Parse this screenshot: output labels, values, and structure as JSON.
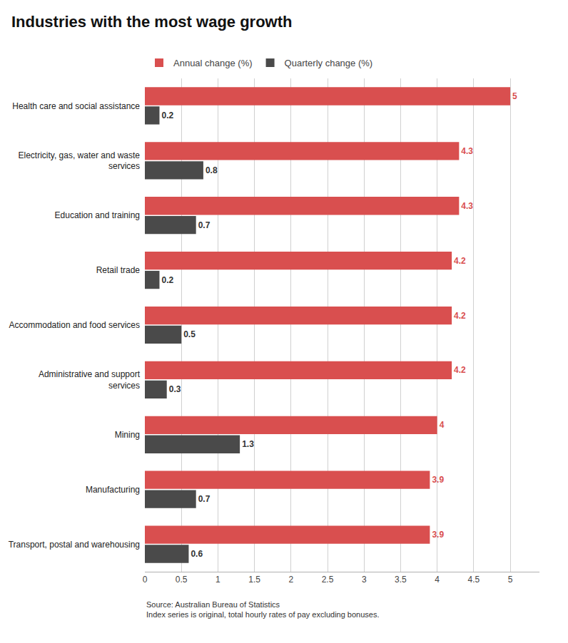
{
  "chart_data": {
    "type": "bar",
    "orientation": "horizontal",
    "title": "Industries with the most wage growth",
    "annotations": [
      "Source: Australian Bureau of Statistics\nIndex series is original, total hourly rates of pay excluding bonuses."
    ],
    "categories": [
      "Health care and social assistance",
      "Electricity, gas, water and waste\nservices",
      "Education and training",
      "Retail trade",
      "Accommodation and food services",
      "Administrative and support\nservices",
      "Mining",
      "Manufacturing",
      "Transport, postal and warehousing"
    ],
    "series": [
      {
        "name": "Annual change (%)",
        "color": "#d94f4f",
        "values": [
          5.0,
          4.3,
          4.3,
          4.2,
          4.2,
          4.2,
          4.0,
          3.9,
          3.9
        ]
      },
      {
        "name": "Quarterly change (%)",
        "color": "#4a4a4a",
        "values": [
          0.2,
          0.8,
          0.7,
          0.2,
          0.5,
          0.3,
          1.3,
          0.7,
          0.6
        ]
      }
    ],
    "xlim": [
      0,
      5.4
    ],
    "xticks": [
      0,
      0.5,
      1,
      1.5,
      2,
      2.5,
      3,
      3.5,
      4,
      4.5,
      5
    ],
    "grid": true,
    "legend": "upper left",
    "data_labels": true
  }
}
